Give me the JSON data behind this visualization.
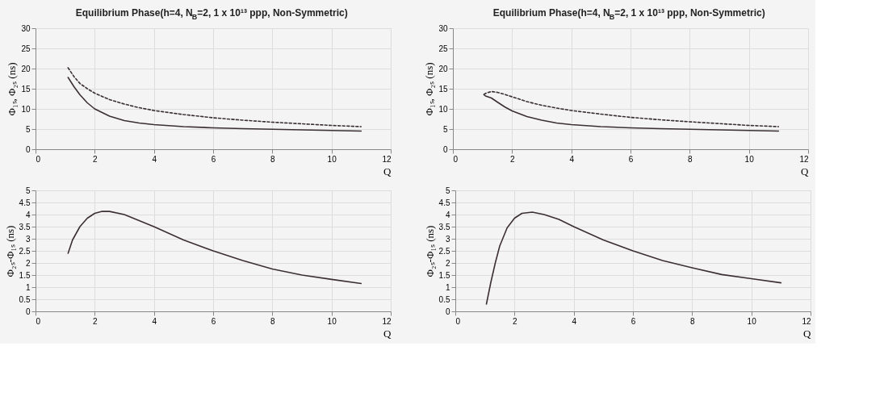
{
  "chart_data": [
    {
      "type": "line",
      "title": "Equilibrium Phase(h=4, N$_{B}$=2, 1 x 10¹³ ppp, Non-Symmetric)",
      "xlabel": "Q",
      "ylabel": "Φ₁ₛ, Φ₂ₛ (ns)",
      "xlim": [
        0,
        12
      ],
      "xticks": [
        0,
        2,
        4,
        6,
        8,
        10,
        12
      ],
      "ylim": [
        0,
        30
      ],
      "yticks": [
        0,
        5,
        10,
        15,
        20,
        25,
        30
      ],
      "grid": true,
      "series": [
        {
          "color": "#3b2f35",
          "line_style": "solid",
          "x": [
            1.1,
            1.3,
            1.5,
            1.75,
            2,
            2.5,
            3,
            3.5,
            4,
            5,
            6,
            7,
            8,
            9,
            10,
            11
          ],
          "values": [
            17.8,
            15.5,
            13.5,
            11.5,
            10,
            8.2,
            7.1,
            6.5,
            6.1,
            5.6,
            5.3,
            5.1,
            4.95,
            4.8,
            4.65,
            4.5
          ]
        },
        {
          "color": "#3b2f35",
          "line_style": "dashed",
          "x": [
            1.1,
            1.3,
            1.5,
            1.75,
            2,
            2.5,
            3,
            3.5,
            4,
            5,
            6,
            7,
            8,
            9,
            10,
            11
          ],
          "values": [
            20.2,
            18,
            16.3,
            15,
            13.9,
            12.3,
            11.2,
            10.3,
            9.6,
            8.6,
            7.8,
            7.2,
            6.7,
            6.3,
            5.9,
            5.6
          ]
        }
      ]
    },
    {
      "type": "line",
      "title": "Equilibrium Phase(h=4, N$_{B}$=2, 1 x 10¹³ ppp, Non-Symmetric)",
      "xlabel": "Q",
      "ylabel": "Φ₁ₛ, Φ₂ₛ (ns)",
      "xlim": [
        0,
        12
      ],
      "xticks": [
        0,
        2,
        4,
        6,
        8,
        10,
        12
      ],
      "ylim": [
        0,
        30
      ],
      "yticks": [
        0,
        5,
        10,
        15,
        20,
        25,
        30
      ],
      "grid": true,
      "series": [
        {
          "color": "#3b2f35",
          "line_style": "solid",
          "x": [
            1.05,
            1.1,
            1.3,
            1.5,
            1.75,
            2,
            2.5,
            3,
            3.5,
            4,
            5,
            6,
            7,
            8,
            9,
            10,
            11
          ],
          "values": [
            13.5,
            13.2,
            12.7,
            11.7,
            10.5,
            9.5,
            8.1,
            7.2,
            6.5,
            6.1,
            5.6,
            5.3,
            5.1,
            4.95,
            4.8,
            4.65,
            4.5
          ]
        },
        {
          "color": "#3b2f35",
          "line_style": "dashed",
          "x": [
            1.05,
            1.15,
            1.3,
            1.5,
            1.75,
            2,
            2.5,
            3,
            3.5,
            4,
            5,
            6,
            7,
            8,
            9,
            10,
            11
          ],
          "values": [
            13.6,
            14.0,
            14.3,
            14.1,
            13.6,
            13,
            11.8,
            10.9,
            10.2,
            9.6,
            8.7,
            7.9,
            7.3,
            6.8,
            6.35,
            5.9,
            5.6
          ]
        }
      ]
    },
    {
      "type": "line",
      "xlabel": "Q",
      "ylabel": "Φ₂ₛ-Φ₁ₛ (ns)",
      "xlim": [
        0,
        12
      ],
      "xticks": [
        0,
        2,
        4,
        6,
        8,
        10,
        12
      ],
      "ylim": [
        0,
        5
      ],
      "yticks": [
        0,
        0.5,
        1,
        1.5,
        2,
        2.5,
        3,
        3.5,
        4,
        4.5,
        5
      ],
      "grid": true,
      "series": [
        {
          "color": "#3b2f35",
          "line_style": "solid",
          "x": [
            1.1,
            1.25,
            1.5,
            1.75,
            2,
            2.25,
            2.5,
            3,
            3.5,
            4,
            5,
            6,
            7,
            8,
            9,
            10,
            11
          ],
          "values": [
            2.4,
            2.95,
            3.5,
            3.85,
            4.05,
            4.13,
            4.13,
            4.0,
            3.75,
            3.5,
            2.95,
            2.5,
            2.1,
            1.75,
            1.5,
            1.32,
            1.15
          ]
        }
      ]
    },
    {
      "type": "line",
      "xlabel": "Q",
      "ylabel": "Φ₂ₛ-Φ₁ₛ (ns)",
      "xlim": [
        0,
        12
      ],
      "xticks": [
        0,
        2,
        4,
        6,
        8,
        10,
        12
      ],
      "ylim": [
        0,
        5
      ],
      "yticks": [
        0,
        0.5,
        1,
        1.5,
        2,
        2.5,
        3,
        3.5,
        4,
        4.5,
        5
      ],
      "grid": true,
      "series": [
        {
          "color": "#3b2f35",
          "line_style": "solid",
          "x": [
            1.05,
            1.2,
            1.35,
            1.5,
            1.75,
            2,
            2.25,
            2.6,
            3,
            3.5,
            4,
            5,
            6,
            7,
            8,
            9,
            10,
            11
          ],
          "values": [
            0.3,
            1.2,
            2.0,
            2.7,
            3.45,
            3.85,
            4.05,
            4.1,
            4.0,
            3.8,
            3.5,
            2.95,
            2.5,
            2.1,
            1.8,
            1.52,
            1.35,
            1.18
          ]
        }
      ]
    }
  ]
}
